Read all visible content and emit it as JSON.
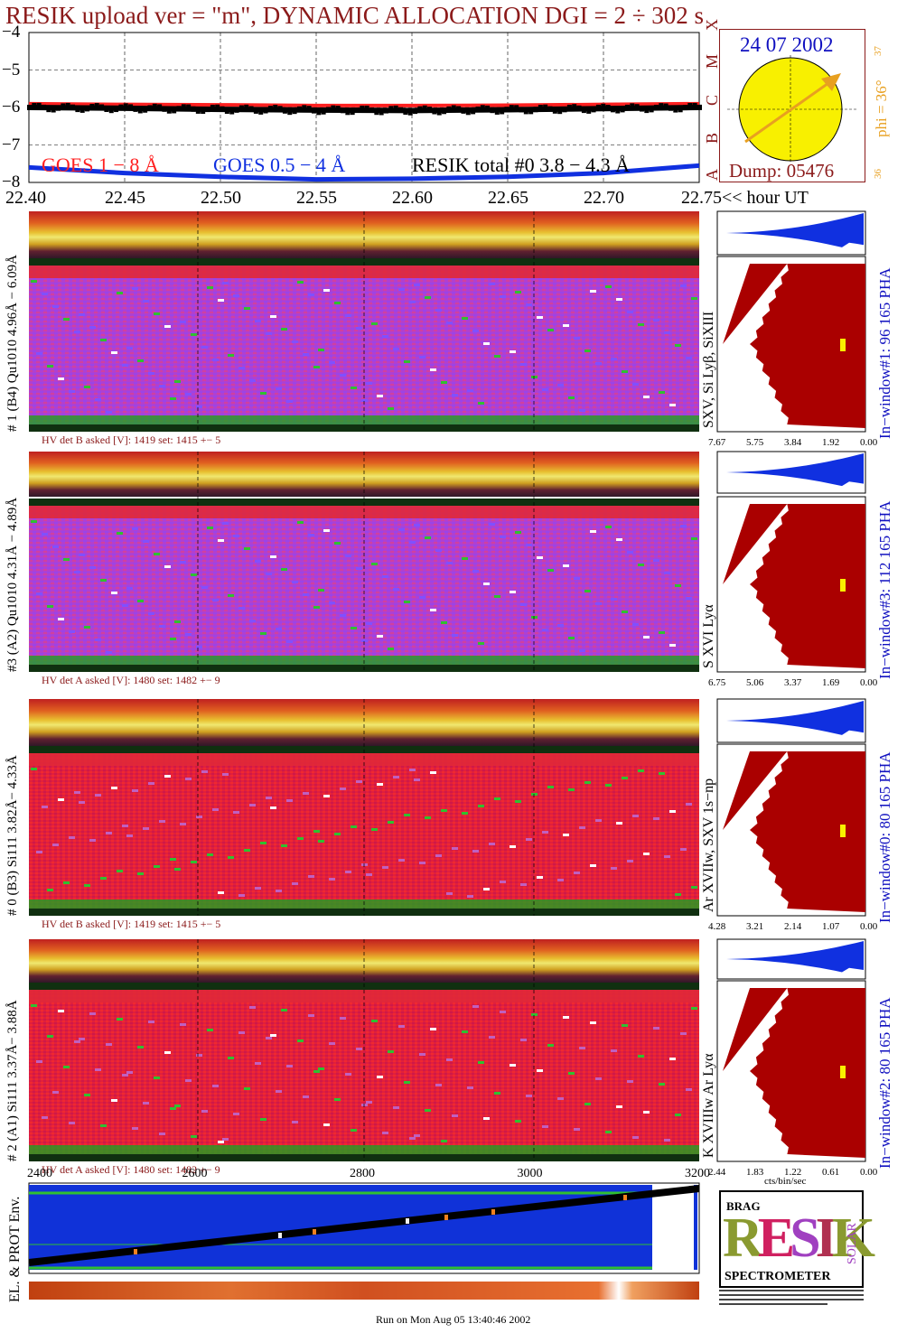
{
  "title": "RESIK upload ver = \"m\", DYNAMIC ALLOCATION  DGI =   2 ÷ 302 s",
  "colors": {
    "title": "#8b1a1a",
    "goes_long": "#ff2020",
    "goes_short": "#1030e0",
    "resik_total": "#000000",
    "pha_blue": "#1030e0",
    "pha_red": "#aa0000",
    "sun": "#f8f000",
    "arrow": "#e8a020"
  },
  "chart_data": [
    {
      "type": "line",
      "name": "lightcurves",
      "x": [
        22.4,
        22.45,
        22.5,
        22.55,
        22.6,
        22.65,
        22.7,
        22.75
      ],
      "xlim": [
        22.4,
        22.75
      ],
      "ylim": [
        -8,
        -4
      ],
      "yticks": [
        "−4",
        "−5",
        "−6",
        "−7",
        "−8"
      ],
      "xticks": [
        "22.40",
        "22.45",
        "22.50",
        "22.55",
        "22.60",
        "22.65",
        "22.70",
        "22.75"
      ],
      "xlabel_suffix": "<< hour UT",
      "class_letters": [
        "X",
        "M",
        "C",
        "B",
        "A"
      ],
      "series": [
        {
          "name": "GOES 1 − 8 Å",
          "values": [
            -5.9,
            -5.92,
            -5.93,
            -5.95,
            -5.95,
            -5.94,
            -5.92,
            -5.9
          ]
        },
        {
          "name": "GOES 0.5 − 4 Å",
          "values": [
            -7.6,
            -7.75,
            -7.85,
            -7.92,
            -7.9,
            -7.85,
            -7.75,
            -7.55
          ]
        },
        {
          "name": "RESIK total #0  3.8 − 4.3 Å",
          "values": [
            -6.0,
            -6.02,
            -6.05,
            -6.07,
            -6.08,
            -6.06,
            -6.03,
            -6.0
          ]
        }
      ],
      "legend": [
        "GOES 1 − 8 Å",
        "GOES 0.5 − 4 Å",
        "RESIK total #0  3.8 − 4.3 Å"
      ]
    },
    {
      "type": "heatmap",
      "name": "channel-1",
      "left_label": "# 1 (B4) Qu1010 4.96Å − 6.09Å",
      "right_label": "SXV, Si Lyβ, SiXIII",
      "window_label": "In−window#1:   96 165  PHA",
      "hv": "HV det B asked [V]:  1419 set:  1415 +−   5",
      "pha_ticks": [
        "7.67",
        "5.75",
        "3.84",
        "1.92",
        "0.00"
      ]
    },
    {
      "type": "heatmap",
      "name": "channel-3",
      "left_label": "#3 (A2) Qu1010  4.31Å − 4.89Å",
      "right_label": "S XVI Lyα",
      "window_label": "In−window#3:  112 165  PHA",
      "hv": "HV det A asked [V]:  1480 set:  1482 +−   9",
      "pha_ticks": [
        "6.75",
        "5.06",
        "3.37",
        "1.69",
        "0.00"
      ]
    },
    {
      "type": "heatmap",
      "name": "channel-0",
      "left_label": "# 0 (B3) Si111  3.82Å− 4.33Å",
      "right_label": "Ar XVIIw,  SXV 1s−np",
      "window_label": "In−window#0:   80 165  PHA",
      "hv": "HV det B asked [V]:  1419 set:  1415 +−   5",
      "pha_ticks": [
        "4.28",
        "3.21",
        "2.14",
        "1.07",
        "0.00"
      ]
    },
    {
      "type": "heatmap",
      "name": "channel-2",
      "left_label": "# 2 (A1) Si111  3.37Å− 3.88Å",
      "right_label": "K XVIIIw  Ar Lyα",
      "window_label": "In−window#2:   80 165  PHA",
      "hv": "HV det A asked [V]:  1480 set:  1482 +−   9",
      "pha_ticks": [
        "2.44",
        "1.83",
        "1.22",
        "0.61",
        "0.00"
      ],
      "pha_unit": "cts/bin/sec"
    },
    {
      "type": "line",
      "name": "environment",
      "xticks": [
        "2400",
        "2600",
        "2800",
        "3000",
        "3200"
      ],
      "ylabel": "EL. & PROT Env."
    }
  ],
  "sun": {
    "date": "24 07 2002",
    "phi": "phi = 36°",
    "phi_top": "37",
    "phi_bottom": "36",
    "dump": "Dump: 05476"
  },
  "logo": {
    "letters": "RESIK",
    "top_left": "BRAG",
    "top_right": "SOLAR",
    "bottom": "SPECTROMETER"
  },
  "footer": "Run on Mon Aug 05 13:40:46 2002"
}
